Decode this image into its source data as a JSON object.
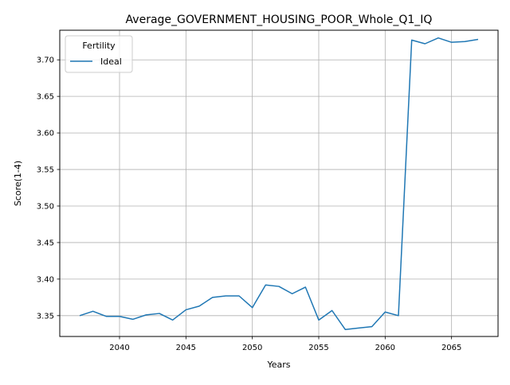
{
  "chart_data": {
    "type": "line",
    "title": "Average_GOVERNMENT_HOUSING_POOR_Whole_Q1_IQ",
    "xlabel": "Years",
    "ylabel": "Score(1-4)",
    "xlim": [
      2035.5,
      2068.5
    ],
    "ylim": [
      3.3215,
      3.7405
    ],
    "xticks": [
      2040,
      2045,
      2050,
      2055,
      2060,
      2065
    ],
    "yticks": [
      3.35,
      3.4,
      3.45,
      3.5,
      3.55,
      3.6,
      3.65,
      3.7
    ],
    "grid": true,
    "legend": {
      "title": "Fertility",
      "position": "top-left"
    },
    "series": [
      {
        "name": "Ideal",
        "color": "#1f77b4",
        "x": [
          2037,
          2038,
          2039,
          2040,
          2041,
          2042,
          2043,
          2044,
          2045,
          2046,
          2047,
          2048,
          2049,
          2050,
          2051,
          2052,
          2053,
          2054,
          2055,
          2056,
          2057,
          2058,
          2059,
          2060,
          2061,
          2062,
          2063,
          2064,
          2065,
          2066,
          2067
        ],
        "y": [
          3.35,
          3.356,
          3.349,
          3.349,
          3.345,
          3.351,
          3.353,
          3.344,
          3.358,
          3.363,
          3.375,
          3.377,
          3.377,
          3.361,
          3.392,
          3.39,
          3.38,
          3.389,
          3.344,
          3.357,
          3.331,
          3.333,
          3.335,
          3.355,
          3.35,
          3.727,
          3.722,
          3.73,
          3.724,
          3.725,
          3.728
        ]
      }
    ]
  }
}
